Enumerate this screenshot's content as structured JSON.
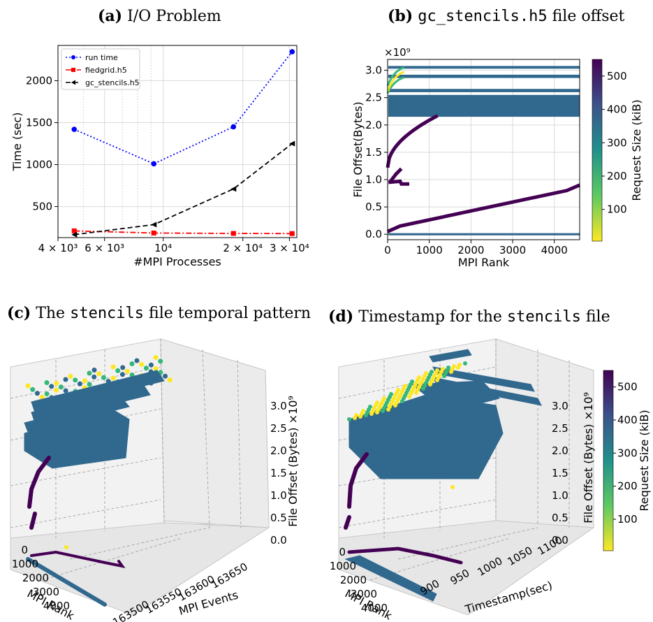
{
  "figure": {
    "captions": [
      {
        "label": "(a)",
        "text": "I/O Problem"
      },
      {
        "label": "(b)",
        "mono": "gc_stencils.h5",
        "text": " file offset"
      },
      {
        "label": "(c)",
        "pre": "The ",
        "mono": "stencils",
        "text": " file temporal pattern"
      },
      {
        "label": "(d)",
        "pre": "Timestamp for the ",
        "mono": "stencils",
        "text": " file"
      }
    ]
  },
  "chart_data": [
    {
      "id": "a",
      "type": "line",
      "xlabel": "#MPI Processes",
      "ylabel": "Time (sec)",
      "xscale": "log",
      "xlim": [
        4000,
        32000
      ],
      "ylim": [
        130,
        2420
      ],
      "x_tick_labels": [
        "4 × 10³",
        "6 × 10³",
        "10⁴",
        "2 × 10⁴",
        "3 × 10⁴"
      ],
      "x_ticks": [
        4000,
        6000,
        10000,
        20000,
        30000
      ],
      "y_ticks": [
        500,
        1000,
        1500,
        2000
      ],
      "x": [
        4608,
        9216,
        18432,
        30720
      ],
      "series": [
        {
          "name": "run time",
          "values": [
            1420,
            1010,
            1450,
            2345
          ],
          "color": "#0000ff",
          "style": "dotted",
          "marker": "circle"
        },
        {
          "name": "fiedgrid.h5",
          "values": [
            210,
            185,
            180,
            178
          ],
          "color": "#ff0000",
          "style": "dashdot",
          "marker": "square"
        },
        {
          "name": "gc_stencils.h5",
          "values": [
            165,
            285,
            710,
            1250
          ],
          "color": "#000000",
          "style": "dashed",
          "marker": "triangle-left"
        }
      ],
      "legend": "top-left",
      "grid": true
    },
    {
      "id": "b",
      "type": "scatter",
      "xlabel": "MPI Rank",
      "ylabel": "File Offset(Bytes)",
      "y_multiplier": "×10⁹",
      "xlim": [
        0,
        4608
      ],
      "ylim": [
        -0.1,
        3.2
      ],
      "x_ticks": [
        0,
        1000,
        2000,
        3000,
        4000
      ],
      "y_ticks": [
        0.0,
        0.5,
        1.0,
        1.5,
        2.0,
        2.5,
        3.0
      ],
      "y_tick_labels": [
        "0.0",
        "0.5",
        "1.0",
        "1.5",
        "2.0",
        "2.5",
        "3.0"
      ],
      "colorbar": {
        "label": "Request Size (kiB)",
        "ticks": [
          100,
          200,
          300,
          400,
          500
        ],
        "min": 5,
        "max": 550,
        "colormap": "viridis_r"
      },
      "grid": true
    },
    {
      "id": "c",
      "type": "scatter",
      "projection": "3d",
      "xlabel": "MPI Rank",
      "ylabel": "MPI Events",
      "zlabel": "File Offset (Bytes)",
      "z_multiplier": "×10⁹",
      "x_ticks": [
        "0",
        "1000",
        "2000",
        "3000",
        "4000"
      ],
      "y_ticks": [
        "163500",
        "163550",
        "163600",
        "163650"
      ],
      "z_ticks": [
        "0.0",
        "0.5",
        "1.0",
        "1.5",
        "2.0",
        "2.5",
        "3.0"
      ]
    },
    {
      "id": "d",
      "type": "scatter",
      "projection": "3d",
      "xlabel": "MPI Rank",
      "ylabel": "Timestamp(sec)",
      "zlabel": "File Offset (Bytes)",
      "z_multiplier": "×10⁹",
      "x_ticks": [
        "0",
        "1000",
        "2000",
        "3000",
        "4000"
      ],
      "y_ticks": [
        "900",
        "950",
        "1000",
        "1050",
        "1100"
      ],
      "z_ticks": [
        "0.0",
        "0.5",
        "1.0",
        "1.5",
        "2.0",
        "2.5",
        "3.0"
      ],
      "colorbar": {
        "label": "Request Size (kiB)",
        "ticks": [
          100,
          200,
          300,
          400,
          500
        ],
        "min": 5,
        "max": 550,
        "colormap": "viridis_r"
      }
    }
  ],
  "colors": {
    "dark_purple": "#440154",
    "teal": "#31688e",
    "green": "#35b779",
    "yellow": "#fde725"
  }
}
